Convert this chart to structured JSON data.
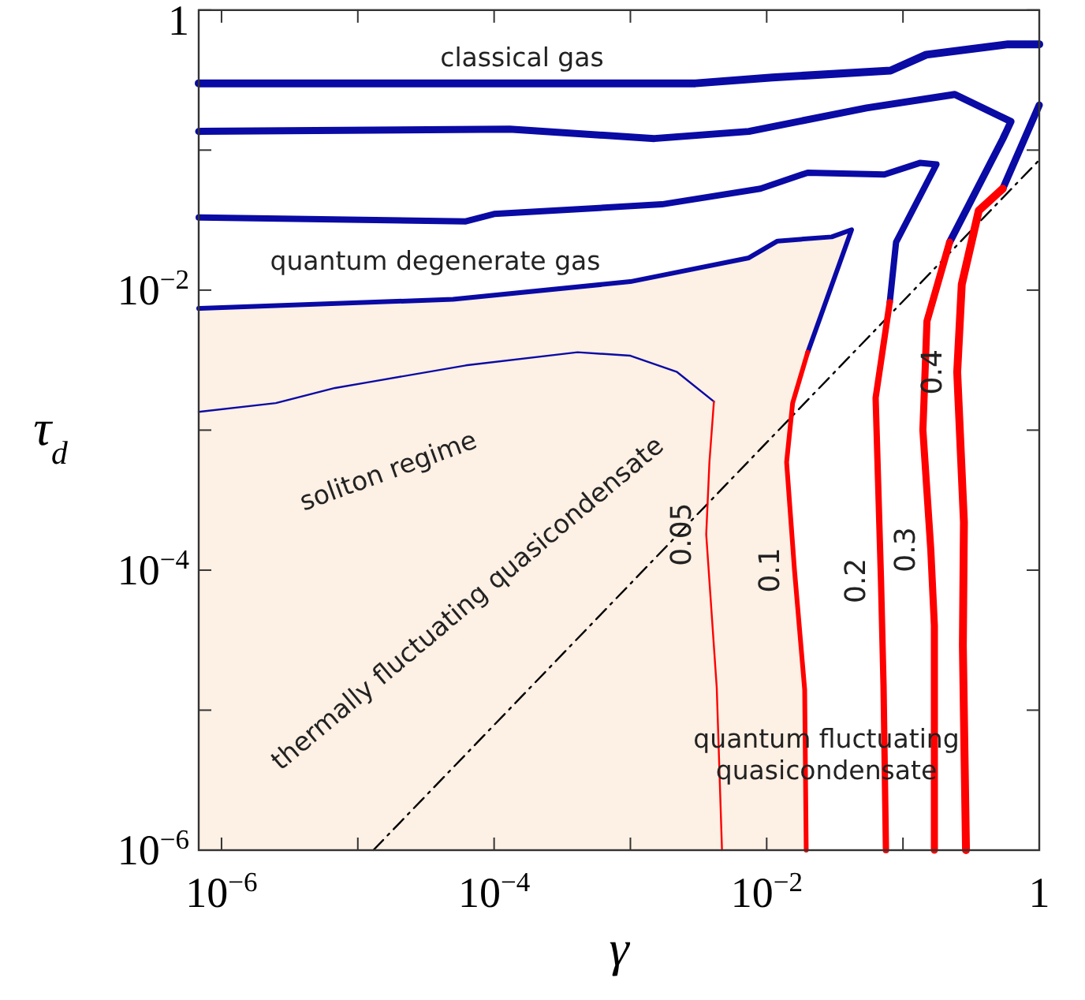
{
  "chart_data": {
    "type": "line",
    "xlabel": "γ",
    "ylabel": "τ$_{d}$",
    "log": "xy",
    "xlim": [
      6.8e-07,
      1
    ],
    "ylim": [
      1e-06,
      1
    ],
    "xticks": [
      {
        "value": 1e-06,
        "label": "10$^{−6}$"
      },
      {
        "value": 1e-05,
        "label": null
      },
      {
        "value": 0.0001,
        "label": "10$^{−4}$"
      },
      {
        "value": 0.001,
        "label": null
      },
      {
        "value": 0.01,
        "label": "10$^{−2}$"
      },
      {
        "value": 0.1,
        "label": null
      },
      1
    ],
    "yticks": [
      {
        "value": 1e-06,
        "label": "10$^{−6}$"
      },
      {
        "value": 1e-05,
        "label": null
      },
      {
        "value": 0.0001,
        "label": "10$^{−4}$"
      },
      {
        "value": 0.001,
        "label": null
      },
      {
        "value": 0.01,
        "label": "10$^{−2}$"
      },
      {
        "value": 0.1,
        "label": null
      },
      1
    ],
    "grid": false,
    "legend": false,
    "annotations": [
      "classical gas",
      "quantum degenerate gas",
      "soliton regime",
      "thermally fluctuating quasicondensate",
      "quantum fluctuating\nquasicondensate"
    ],
    "series": [
      {
        "color": "#000000",
        "line_style": "dashed",
        "x": [
          1.3e-05,
          1
        ],
        "values": [
          1e-06,
          0.085
        ]
      },
      {
        "color": "#0a0aa5",
        "x": [
          6.8e-07,
          0.003,
          0.011,
          0.081,
          0.148,
          0.59,
          1
        ],
        "values": [
          0.3,
          0.3,
          0.33,
          0.37,
          0.48,
          0.57,
          0.57
        ]
      },
      {
        "color": "#0a0aa5",
        "x": [
          6.8e-07,
          0.00013,
          0.0015,
          0.0074,
          0.054,
          0.24,
          0.62,
          0.54,
          0.22
        ],
        "values": [
          0.136,
          0.141,
          0.121,
          0.136,
          0.2,
          0.25,
          0.16,
          0.12,
          0.022
        ]
      },
      {
        "color": "#0a0aa5",
        "x": [
          6.8e-07,
          6.2e-05,
          0.0001,
          0.0017,
          0.009,
          0.02,
          0.073,
          0.133,
          0.176,
          0.089,
          0.08
        ],
        "values": [
          0.033,
          0.031,
          0.035,
          0.041,
          0.053,
          0.069,
          0.067,
          0.081,
          0.079,
          0.022,
          0.0082
        ]
      },
      {
        "color": "#0a0aa5",
        "x": [
          6.8e-07,
          2.5e-06,
          6.8e-06,
          1.2e-05,
          6.2e-05,
          0.00041,
          0.001,
          0.0022,
          0.0041
        ],
        "values": [
          0.00135,
          0.00156,
          0.002,
          0.0022,
          0.0029,
          0.0036,
          0.0034,
          0.0026,
          0.0016
        ]
      },
      {
        "color": "#0a0aa5",
        "x": [
          0.54,
          1
        ],
        "values": [
          0.053,
          0.21
        ]
      },
      {
        "name": "0.05",
        "color": "#ff0000",
        "x": [
          0.0041,
          0.0038,
          0.0036,
          0.0043,
          0.0047
        ],
        "values": [
          0.0016,
          0.00059,
          0.00018,
          1.45e-05,
          1e-06
        ]
      },
      {
        "name": "0.2",
        "color": "#ff0000",
        "x": [
          0.08,
          0.063,
          0.069,
          0.072,
          0.075
        ],
        "values": [
          0.0082,
          0.0017,
          8.4e-05,
          1.5e-05,
          1e-06
        ]
      },
      {
        "name": "0.3",
        "color": "#ff0000",
        "x": [
          0.22,
          0.15,
          0.14,
          0.16,
          0.17,
          0.17
        ],
        "values": [
          0.022,
          0.006,
          0.001,
          0.00014,
          4e-05,
          1e-06
        ]
      },
      {
        "name": "0.4",
        "color": "#ff0000",
        "x": [
          0.54,
          0.36,
          0.27,
          0.25,
          0.28,
          0.275,
          0.29
        ],
        "values": [
          0.053,
          0.037,
          0.011,
          0.0026,
          0.00022,
          2.9e-05,
          1e-06
        ]
      },
      {
        "type": "area",
        "name": "0.1",
        "color": "#fdf0e4",
        "colors": [
          "#0a0aa5",
          "#0a0aa5",
          "#0a0aa5",
          "#0a0aa5",
          "#0a0aa5",
          "#0a0aa5",
          "#0a0aa5",
          "#0a0aa5",
          "#0a0aa5",
          "#ff0000",
          "#ff0000",
          "#ff0000",
          "#ff0000",
          "#ff0000"
        ],
        "x": [
          6.8e-07,
          5e-05,
          0.001,
          0.0074,
          0.012,
          0.03,
          0.042,
          0.025,
          0.02,
          0.0155,
          0.014,
          0.016,
          0.019,
          0.0195
        ],
        "values": [
          0.0074,
          0.0086,
          0.0115,
          0.017,
          0.0224,
          0.024,
          0.027,
          0.0066,
          0.0036,
          0.00156,
          0.00059,
          0.0001,
          1.4e-05,
          1e-06
        ]
      }
    ]
  }
}
